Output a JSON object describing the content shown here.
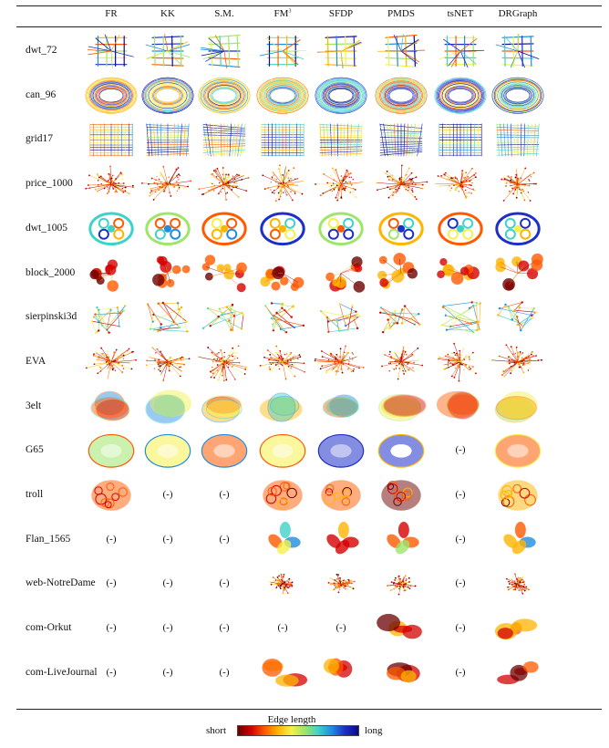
{
  "columns": [
    {
      "key": "fr",
      "label": "FR"
    },
    {
      "key": "kk",
      "label": "KK"
    },
    {
      "key": "sm",
      "label": "S.M."
    },
    {
      "key": "fm3",
      "label": "FM",
      "sup": "3"
    },
    {
      "key": "sfdp",
      "label": "SFDP"
    },
    {
      "key": "pmds",
      "label": "PMDS"
    },
    {
      "key": "tsnet",
      "label": "tsNET"
    },
    {
      "key": "drgraph",
      "label": "DRGraph"
    }
  ],
  "missing_label": "(-)",
  "rows": [
    {
      "label": "dwt_72",
      "shape": "sparse",
      "palette": "long",
      "cells": [
        "img",
        "img",
        "img",
        "img",
        "img",
        "img",
        "img",
        "img"
      ]
    },
    {
      "label": "can_96",
      "shape": "ring",
      "palette": "long",
      "cells": [
        "img",
        "img",
        "img",
        "img",
        "img",
        "img",
        "img",
        "img"
      ]
    },
    {
      "label": "grid17",
      "shape": "grid",
      "palette": "long",
      "cells": [
        "img",
        "img",
        "img",
        "img",
        "img",
        "img",
        "img",
        "img"
      ]
    },
    {
      "label": "price_1000",
      "shape": "tree",
      "palette": "short",
      "cells": [
        "img",
        "img",
        "img",
        "img",
        "img",
        "img",
        "img",
        "img"
      ]
    },
    {
      "label": "dwt_1005",
      "shape": "wheel",
      "palette": "mid",
      "cells": [
        "img",
        "img",
        "img",
        "img",
        "img",
        "img",
        "img",
        "img"
      ]
    },
    {
      "label": "block_2000",
      "shape": "cluster",
      "palette": "hot",
      "cells": [
        "img",
        "img",
        "img",
        "img",
        "img",
        "img",
        "img",
        "img"
      ]
    },
    {
      "label": "sierpinski3d",
      "shape": "sierp",
      "palette": "warm",
      "cells": [
        "img",
        "img",
        "img",
        "img",
        "img",
        "img",
        "img",
        "img"
      ]
    },
    {
      "label": "EVA",
      "shape": "star",
      "palette": "short",
      "cells": [
        "img",
        "img",
        "img",
        "img",
        "img",
        "img",
        "img",
        "img"
      ]
    },
    {
      "label": "3elt",
      "shape": "blob",
      "palette": "warm",
      "cells": [
        "img",
        "img",
        "img",
        "img",
        "img",
        "img",
        "img",
        "img"
      ]
    },
    {
      "label": "G65",
      "shape": "torus",
      "palette": "mid",
      "cells": [
        "img",
        "img",
        "img",
        "img",
        "img",
        "img",
        "na",
        "img"
      ]
    },
    {
      "label": "troll",
      "shape": "mesh",
      "palette": "hot",
      "cells": [
        "img",
        "na",
        "na",
        "img",
        "img",
        "img",
        "na",
        "img"
      ]
    },
    {
      "label": "Flan_1565",
      "shape": "flan",
      "palette": "warm",
      "cells": [
        "na",
        "na",
        "na",
        "img",
        "img",
        "img",
        "na",
        "img"
      ]
    },
    {
      "label": "web-NotreDame",
      "shape": "spark",
      "palette": "short",
      "cells": [
        "na",
        "na",
        "na",
        "img",
        "img",
        "img",
        "na",
        "img"
      ]
    },
    {
      "label": "com-Orkut",
      "shape": "cloud",
      "palette": "hot",
      "cells": [
        "na",
        "na",
        "na",
        "na",
        "na",
        "img",
        "na",
        "img"
      ]
    },
    {
      "label": "com-LiveJournal",
      "shape": "cloud",
      "palette": "hot",
      "cells": [
        "na",
        "na",
        "na",
        "img",
        "img",
        "img",
        "na",
        "img"
      ]
    }
  ],
  "legend": {
    "title": "Edge length",
    "low_label": "short",
    "high_label": "long",
    "colors": [
      "#6b0000",
      "#d40000",
      "#ff5a00",
      "#ffb400",
      "#f5f04a",
      "#9ee56a",
      "#3fd2c8",
      "#1f8de0",
      "#1e2fc8",
      "#0a0a8a"
    ]
  }
}
